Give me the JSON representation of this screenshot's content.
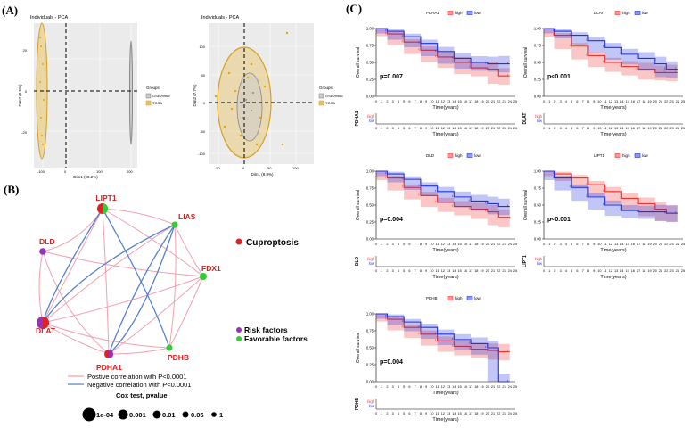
{
  "panels": {
    "a": "(A)",
    "b": "(B)",
    "c": "(C)"
  },
  "pca": [
    {
      "title": "Individuals - PCA",
      "xlabel": "Dim1 (98.2%)",
      "ylabel": "Dim2 (0.5%)",
      "xticks": [
        "-100",
        "0",
        "100",
        "200"
      ],
      "yticks": [
        "20",
        "0",
        "-20"
      ],
      "legend_title": "Groups",
      "legend_items": [
        "GSE29965",
        "TCGA"
      ]
    },
    {
      "title": "Individuals - PCA",
      "xlabel": "Dim1 (8.8%)",
      "ylabel": "Dim2 (7.7%)",
      "xticks": [
        "-50",
        "0",
        "50",
        "100"
      ],
      "yticks": [
        "100",
        "50",
        "0",
        "-50",
        "-100"
      ],
      "legend_title": "Groups",
      "legend_items": [
        "GSE29965",
        "TCGA"
      ]
    }
  ],
  "network": {
    "nodes": [
      {
        "label": "LIPT1",
        "type": "mixed"
      },
      {
        "label": "LIAS",
        "type": "favorable"
      },
      {
        "label": "DLD",
        "type": "risk"
      },
      {
        "label": "FDX1",
        "type": "favorable"
      },
      {
        "label": "DLAT",
        "type": "mixed"
      },
      {
        "label": "PDHB",
        "type": "favorable"
      },
      {
        "label": "PDHA1",
        "type": "mixed"
      }
    ],
    "cluster_label": "Cuproptosis",
    "legend_risk": "Risk factors",
    "legend_favorable": "Favorable factors",
    "pos_corr": "Postive correlation with P<0.0001",
    "neg_corr": "Negative correlation with P<0.0001",
    "cox_title": "Cox test, pvalue",
    "cox_levels": [
      "1e-04",
      "0.001",
      "0.01",
      "0.05",
      "1"
    ],
    "colors": {
      "risk": "#9b30b8",
      "favorable": "#33cc33",
      "node": "#dd2222",
      "pos": "#f0a0b0",
      "neg": "#5580cc"
    }
  },
  "km": [
    {
      "gene": "PDHA1",
      "pvalue": "p=0.007"
    },
    {
      "gene": "DLAT",
      "pvalue": "p<0.001"
    },
    {
      "gene": "DLD",
      "pvalue": "p=0.004"
    },
    {
      "gene": "LIPT1",
      "pvalue": "p<0.001"
    },
    {
      "gene": "PDHB",
      "pvalue": "p=0.004"
    }
  ],
  "km_common": {
    "ylabel": "Overall survival",
    "xlabel": "Time(years)",
    "yticks": [
      "1.00",
      "0.75",
      "0.50",
      "0.25",
      "0.00"
    ],
    "xticks": [
      "0",
      "1",
      "2",
      "3",
      "4",
      "5",
      "6",
      "7",
      "8",
      "9",
      "10",
      "11",
      "12",
      "13",
      "14",
      "15",
      "16",
      "17",
      "18",
      "19",
      "20",
      "21",
      "22",
      "23",
      "24",
      "25"
    ],
    "legend_high": "high",
    "legend_low": "low",
    "risk_high": "high",
    "risk_low": "low",
    "color_high": "#ee3333",
    "color_low": "#2233dd"
  },
  "chart_data": [
    {
      "type": "line",
      "title": "PDHA1",
      "xlabel": "Time(years)",
      "ylabel": "Overall survival",
      "ylim": [
        0,
        1
      ],
      "xlim": [
        0,
        25
      ],
      "series": [
        {
          "name": "high",
          "x": [
            0,
            2,
            5,
            8,
            11,
            14,
            17,
            20,
            22,
            24
          ],
          "values": [
            1,
            0.92,
            0.8,
            0.68,
            0.58,
            0.5,
            0.42,
            0.4,
            0.3,
            0.3
          ]
        },
        {
          "name": "low",
          "x": [
            0,
            2,
            5,
            8,
            11,
            14,
            17,
            20,
            22,
            24
          ],
          "values": [
            1,
            0.96,
            0.88,
            0.78,
            0.66,
            0.56,
            0.5,
            0.48,
            0.48,
            0.48
          ]
        }
      ]
    },
    {
      "type": "line",
      "title": "DLAT",
      "xlabel": "Time(years)",
      "ylabel": "Overall survival",
      "ylim": [
        0,
        1
      ],
      "xlim": [
        0,
        25
      ],
      "series": [
        {
          "name": "high",
          "x": [
            0,
            2,
            5,
            8,
            11,
            14,
            17,
            20,
            22,
            24
          ],
          "values": [
            1,
            0.9,
            0.74,
            0.6,
            0.5,
            0.44,
            0.4,
            0.35,
            0.35,
            0.35
          ]
        },
        {
          "name": "low",
          "x": [
            0,
            2,
            5,
            8,
            11,
            14,
            17,
            20,
            22,
            24
          ],
          "values": [
            1,
            0.96,
            0.9,
            0.82,
            0.72,
            0.62,
            0.56,
            0.48,
            0.4,
            0.4
          ]
        }
      ]
    },
    {
      "type": "line",
      "title": "DLD",
      "xlabel": "Time(years)",
      "ylabel": "Overall survival",
      "ylim": [
        0,
        1
      ],
      "xlim": [
        0,
        25
      ],
      "series": [
        {
          "name": "high",
          "x": [
            0,
            2,
            5,
            8,
            11,
            14,
            17,
            20,
            22,
            24
          ],
          "values": [
            1,
            0.9,
            0.76,
            0.64,
            0.54,
            0.48,
            0.44,
            0.4,
            0.32,
            0.3
          ]
        },
        {
          "name": "low",
          "x": [
            0,
            2,
            5,
            8,
            11,
            14,
            17,
            20,
            22,
            24
          ],
          "values": [
            1,
            0.96,
            0.88,
            0.78,
            0.7,
            0.62,
            0.56,
            0.52,
            0.48,
            0.48
          ]
        }
      ]
    },
    {
      "type": "line",
      "title": "LIPT1",
      "xlabel": "Time(years)",
      "ylabel": "Overall survival",
      "ylim": [
        0,
        1
      ],
      "xlim": [
        0,
        25
      ],
      "series": [
        {
          "name": "high",
          "x": [
            0,
            2,
            5,
            8,
            11,
            14,
            17,
            20,
            22,
            24
          ],
          "values": [
            1,
            0.96,
            0.9,
            0.8,
            0.7,
            0.6,
            0.52,
            0.44,
            0.38,
            0.38
          ]
        },
        {
          "name": "low",
          "x": [
            0,
            2,
            5,
            8,
            11,
            14,
            17,
            20,
            22,
            24
          ],
          "values": [
            1,
            0.9,
            0.76,
            0.62,
            0.5,
            0.42,
            0.4,
            0.4,
            0.38,
            0.38
          ]
        }
      ]
    },
    {
      "type": "line",
      "title": "PDHB",
      "xlabel": "Time(years)",
      "ylabel": "Overall survival",
      "ylim": [
        0,
        1
      ],
      "xlim": [
        0,
        25
      ],
      "series": [
        {
          "name": "high",
          "x": [
            0,
            2,
            5,
            8,
            11,
            14,
            17,
            20,
            22,
            24
          ],
          "values": [
            1,
            0.92,
            0.8,
            0.7,
            0.6,
            0.52,
            0.48,
            0.46,
            0.44,
            0.44
          ]
        },
        {
          "name": "low",
          "x": [
            0,
            2,
            5,
            8,
            11,
            14,
            17,
            20,
            22,
            24
          ],
          "values": [
            1,
            0.96,
            0.88,
            0.8,
            0.7,
            0.62,
            0.56,
            0.5,
            0.0,
            0.0
          ]
        }
      ]
    }
  ]
}
